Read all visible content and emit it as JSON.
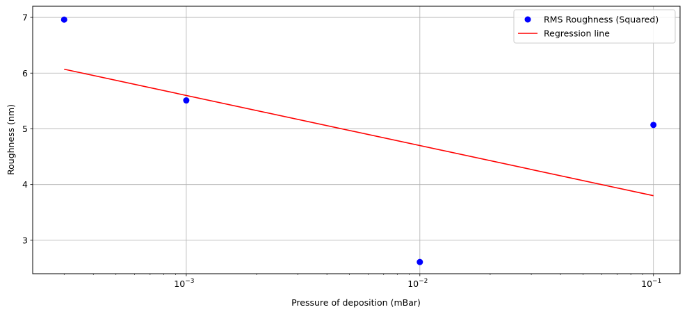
{
  "chart_data": {
    "type": "scatter",
    "title": "",
    "xlabel": "Pressure of deposition (mBar)",
    "ylabel": "Roughness (nm)",
    "xscale": "log",
    "xlim": [
      0.00022,
      0.13
    ],
    "ylim": [
      2.4,
      7.2
    ],
    "grid": true,
    "legend_position": "top-right",
    "x_ticks": [
      {
        "value": 0.001,
        "base": "10",
        "exp": "−3"
      },
      {
        "value": 0.01,
        "base": "10",
        "exp": "−2"
      },
      {
        "value": 0.1,
        "base": "10",
        "exp": "−1"
      }
    ],
    "y_ticks": [
      3,
      4,
      5,
      6,
      7
    ],
    "series": [
      {
        "name": "RMS Roughness (Squared)",
        "kind": "scatter",
        "color": "#0000ff",
        "x": [
          0.0003,
          0.001,
          0.01,
          0.1
        ],
        "y": [
          6.96,
          5.51,
          2.61,
          5.07
        ]
      },
      {
        "name": "Regression line",
        "kind": "line",
        "color": "#ff0000",
        "x": [
          0.0003,
          0.1
        ],
        "y": [
          6.07,
          3.8
        ]
      }
    ]
  }
}
